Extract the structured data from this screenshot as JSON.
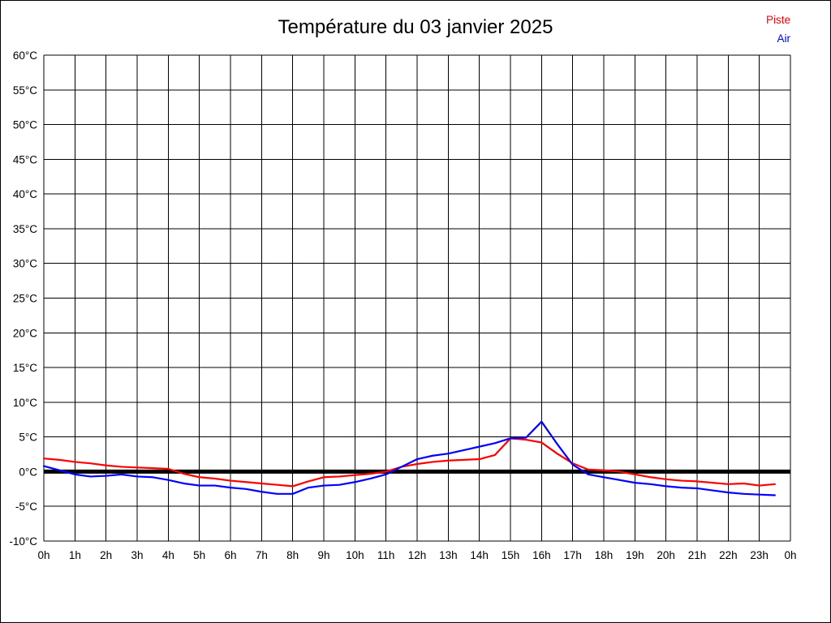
{
  "title": "Température du 03 janvier 2025",
  "legend": {
    "items": [
      {
        "label": "Piste",
        "color": "#ff0000"
      },
      {
        "label": "Air",
        "color": "#0000ff"
      }
    ]
  },
  "chart_data": {
    "type": "line",
    "title": "Température du 03 janvier 2025",
    "xlabel": "",
    "ylabel": "",
    "xlim": [
      0,
      24
    ],
    "ylim": [
      -10,
      60
    ],
    "grid": true,
    "zero_line": true,
    "legend_position": "top-right",
    "x_tick_values": [
      0,
      1,
      2,
      3,
      4,
      5,
      6,
      7,
      8,
      9,
      10,
      11,
      12,
      13,
      14,
      15,
      16,
      17,
      18,
      19,
      20,
      21,
      22,
      23,
      24
    ],
    "x_tick_labels": [
      "0h",
      "1h",
      "2h",
      "3h",
      "4h",
      "5h",
      "6h",
      "7h",
      "8h",
      "9h",
      "10h",
      "11h",
      "12h",
      "13h",
      "14h",
      "15h",
      "16h",
      "17h",
      "18h",
      "19h",
      "20h",
      "21h",
      "22h",
      "23h",
      "0h"
    ],
    "y_tick_values": [
      60,
      55,
      50,
      45,
      40,
      35,
      30,
      25,
      20,
      15,
      10,
      5,
      0,
      -5,
      -10
    ],
    "y_tick_labels": [
      "60°C",
      "55°C",
      "50°C",
      "45°C",
      "40°C",
      "35°C",
      "30°C",
      "25°C",
      "20°C",
      "15°C",
      "10°C",
      "5°C",
      "0°C",
      "-5°C",
      "-10°C"
    ],
    "x": [
      0,
      0.5,
      1,
      1.5,
      2,
      2.5,
      3,
      3.5,
      4,
      4.5,
      5,
      5.5,
      6,
      6.5,
      7,
      7.5,
      8,
      8.5,
      9,
      9.5,
      10,
      10.5,
      11,
      11.5,
      12,
      12.5,
      13,
      13.5,
      14,
      14.5,
      15,
      15.5,
      16,
      16.5,
      17,
      17.5,
      18,
      18.5,
      19,
      19.5,
      20,
      20.5,
      21,
      21.5,
      22,
      22.5,
      23,
      23.5
    ],
    "series": [
      {
        "name": "Piste",
        "color": "#ff0000",
        "values": [
          1.9,
          1.7,
          1.4,
          1.2,
          0.9,
          0.7,
          0.6,
          0.5,
          0.4,
          -0.3,
          -0.8,
          -1.0,
          -1.3,
          -1.5,
          -1.7,
          -1.9,
          -2.1,
          -1.4,
          -0.8,
          -0.7,
          -0.5,
          -0.3,
          0.0,
          0.7,
          1.1,
          1.4,
          1.6,
          1.7,
          1.8,
          2.4,
          4.8,
          4.6,
          4.2,
          2.6,
          1.2,
          0.3,
          0.2,
          0.0,
          -0.4,
          -0.8,
          -1.1,
          -1.3,
          -1.4,
          -1.6,
          -1.8,
          -1.7,
          -2.0,
          -1.8
        ]
      },
      {
        "name": "Air",
        "color": "#0000ff",
        "values": [
          0.8,
          0.2,
          -0.4,
          -0.7,
          -0.6,
          -0.4,
          -0.7,
          -0.8,
          -1.2,
          -1.7,
          -2.0,
          -2.0,
          -2.3,
          -2.5,
          -2.9,
          -3.2,
          -3.2,
          -2.3,
          -2.0,
          -1.9,
          -1.5,
          -1.0,
          -0.4,
          0.7,
          1.8,
          2.3,
          2.6,
          3.1,
          3.6,
          4.1,
          4.8,
          4.9,
          7.2,
          4.0,
          1.0,
          -0.4,
          -0.8,
          -1.2,
          -1.6,
          -1.8,
          -2.1,
          -2.3,
          -2.4,
          -2.7,
          -3.0,
          -3.2,
          -3.3,
          -3.4
        ]
      }
    ]
  }
}
